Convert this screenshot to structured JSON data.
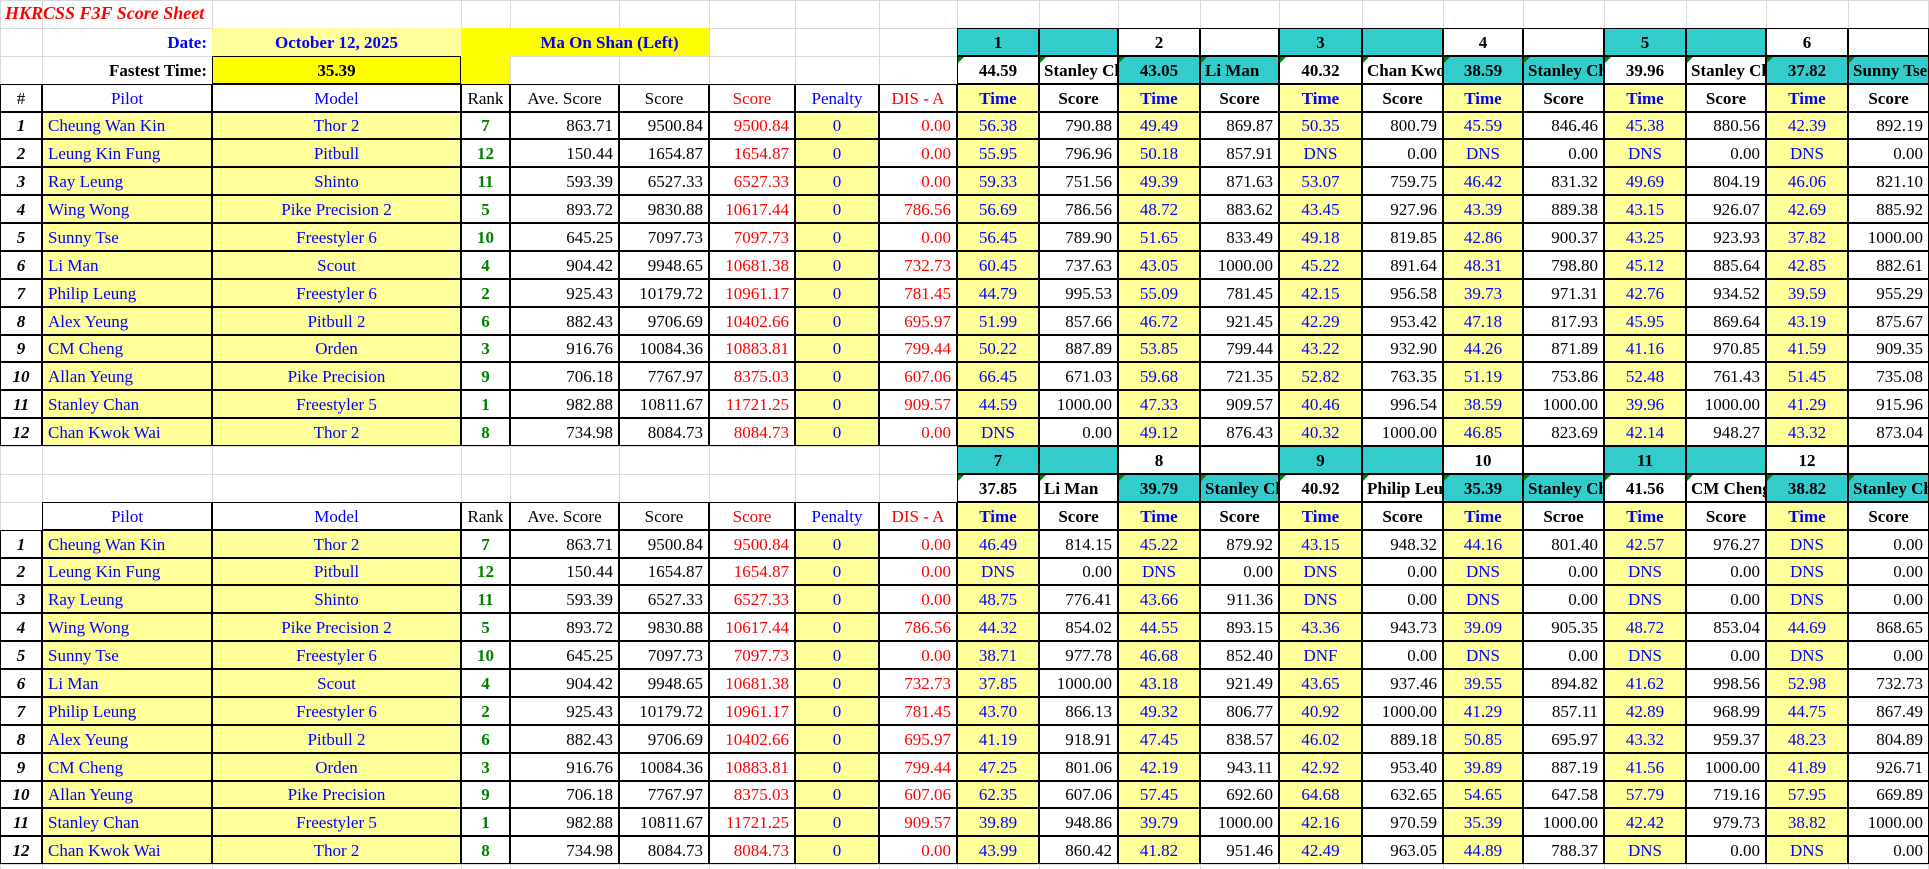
{
  "sheet_title": "HKRCSS F3F Score Sheet",
  "header": {
    "date_label": "Date:",
    "date_value": "October 12, 2025",
    "fastest_label": "Fastest Time:",
    "fastest_value": "35.39",
    "location": "Ma On Shan (Left)"
  },
  "columns": {
    "index": "#",
    "pilot": "Pilot",
    "model": "Model",
    "rank": "Rank",
    "ave": "Ave. Score",
    "score": "Score",
    "score_red": "Score",
    "penalty": "Penalty",
    "dis": "DIS - A",
    "time": "Time",
    "round_score": "Score",
    "round_score_alt": "Scroe"
  },
  "pilots": [
    {
      "no": "1",
      "pilot": "Cheung Wan Kin",
      "model": "Thor 2",
      "rank": "7",
      "ave": "863.71",
      "score": "9500.84",
      "total": "9500.84",
      "penalty": "0",
      "dis": "0.00"
    },
    {
      "no": "2",
      "pilot": "Leung Kin Fung",
      "model": "Pitbull",
      "rank": "12",
      "ave": "150.44",
      "score": "1654.87",
      "total": "1654.87",
      "penalty": "0",
      "dis": "0.00"
    },
    {
      "no": "3",
      "pilot": "Ray Leung",
      "model": "Shinto",
      "rank": "11",
      "ave": "593.39",
      "score": "6527.33",
      "total": "6527.33",
      "penalty": "0",
      "dis": "0.00"
    },
    {
      "no": "4",
      "pilot": "Wing Wong",
      "model": "Pike Precision 2",
      "rank": "5",
      "ave": "893.72",
      "score": "9830.88",
      "total": "10617.44",
      "penalty": "0",
      "dis": "786.56"
    },
    {
      "no": "5",
      "pilot": "Sunny Tse",
      "model": "Freestyler 6",
      "rank": "10",
      "ave": "645.25",
      "score": "7097.73",
      "total": "7097.73",
      "penalty": "0",
      "dis": "0.00"
    },
    {
      "no": "6",
      "pilot": "Li Man",
      "model": "Scout",
      "rank": "4",
      "ave": "904.42",
      "score": "9948.65",
      "total": "10681.38",
      "penalty": "0",
      "dis": "732.73"
    },
    {
      "no": "7",
      "pilot": "Philip Leung",
      "model": "Freestyler 6",
      "rank": "2",
      "ave": "925.43",
      "score": "10179.72",
      "total": "10961.17",
      "penalty": "0",
      "dis": "781.45"
    },
    {
      "no": "8",
      "pilot": "Alex Yeung",
      "model": "Pitbull 2",
      "rank": "6",
      "ave": "882.43",
      "score": "9706.69",
      "total": "10402.66",
      "penalty": "0",
      "dis": "695.97"
    },
    {
      "no": "9",
      "pilot": "CM Cheng",
      "model": "Orden",
      "rank": "3",
      "ave": "916.76",
      "score": "10084.36",
      "total": "10883.81",
      "penalty": "0",
      "dis": "799.44"
    },
    {
      "no": "10",
      "pilot": "Allan Yeung",
      "model": "Pike Precision",
      "rank": "9",
      "ave": "706.18",
      "score": "7767.97",
      "total": "8375.03",
      "penalty": "0",
      "dis": "607.06"
    },
    {
      "no": "11",
      "pilot": "Stanley Chan",
      "model": "Freestyler 5",
      "rank": "1",
      "ave": "982.88",
      "score": "10811.67",
      "total": "11721.25",
      "penalty": "0",
      "dis": "909.57"
    },
    {
      "no": "12",
      "pilot": "Chan Kwok Wai",
      "model": "Thor 2",
      "rank": "8",
      "ave": "734.98",
      "score": "8084.73",
      "total": "8084.73",
      "penalty": "0",
      "dis": "0.00"
    }
  ],
  "rounds_top": [
    {
      "round": "1",
      "best_time": "44.59",
      "best_pilot": "Stanley Chan",
      "entries": [
        [
          "56.38",
          "790.88"
        ],
        [
          "55.95",
          "796.96"
        ],
        [
          "59.33",
          "751.56"
        ],
        [
          "56.69",
          "786.56"
        ],
        [
          "56.45",
          "789.90"
        ],
        [
          "60.45",
          "737.63"
        ],
        [
          "44.79",
          "995.53"
        ],
        [
          "51.99",
          "857.66"
        ],
        [
          "50.22",
          "887.89"
        ],
        [
          "66.45",
          "671.03"
        ],
        [
          "44.59",
          "1000.00"
        ],
        [
          "DNS",
          "0.00"
        ]
      ]
    },
    {
      "round": "2",
      "best_time": "43.05",
      "best_pilot": "Li Man",
      "entries": [
        [
          "49.49",
          "869.87"
        ],
        [
          "50.18",
          "857.91"
        ],
        [
          "49.39",
          "871.63"
        ],
        [
          "48.72",
          "883.62"
        ],
        [
          "51.65",
          "833.49"
        ],
        [
          "43.05",
          "1000.00"
        ],
        [
          "55.09",
          "781.45"
        ],
        [
          "46.72",
          "921.45"
        ],
        [
          "53.85",
          "799.44"
        ],
        [
          "59.68",
          "721.35"
        ],
        [
          "47.33",
          "909.57"
        ],
        [
          "49.12",
          "876.43"
        ]
      ]
    },
    {
      "round": "3",
      "best_time": "40.32",
      "best_pilot": "Chan Kwok Wai",
      "entries": [
        [
          "50.35",
          "800.79"
        ],
        [
          "DNS",
          "0.00"
        ],
        [
          "53.07",
          "759.75"
        ],
        [
          "43.45",
          "927.96"
        ],
        [
          "49.18",
          "819.85"
        ],
        [
          "45.22",
          "891.64"
        ],
        [
          "42.15",
          "956.58"
        ],
        [
          "42.29",
          "953.42"
        ],
        [
          "43.22",
          "932.90"
        ],
        [
          "52.82",
          "763.35"
        ],
        [
          "40.46",
          "996.54"
        ],
        [
          "40.32",
          "1000.00"
        ]
      ]
    },
    {
      "round": "4",
      "best_time": "38.59",
      "best_pilot": "Stanley Chan",
      "entries": [
        [
          "45.59",
          "846.46"
        ],
        [
          "DNS",
          "0.00"
        ],
        [
          "46.42",
          "831.32"
        ],
        [
          "43.39",
          "889.38"
        ],
        [
          "42.86",
          "900.37"
        ],
        [
          "48.31",
          "798.80"
        ],
        [
          "39.73",
          "971.31"
        ],
        [
          "47.18",
          "817.93"
        ],
        [
          "44.26",
          "871.89"
        ],
        [
          "51.19",
          "753.86"
        ],
        [
          "38.59",
          "1000.00"
        ],
        [
          "46.85",
          "823.69"
        ]
      ]
    },
    {
      "round": "5",
      "best_time": "39.96",
      "best_pilot": "Stanley Chan",
      "entries": [
        [
          "45.38",
          "880.56"
        ],
        [
          "DNS",
          "0.00"
        ],
        [
          "49.69",
          "804.19"
        ],
        [
          "43.15",
          "926.07"
        ],
        [
          "43.25",
          "923.93"
        ],
        [
          "45.12",
          "885.64"
        ],
        [
          "42.76",
          "934.52"
        ],
        [
          "45.95",
          "869.64"
        ],
        [
          "41.16",
          "970.85"
        ],
        [
          "52.48",
          "761.43"
        ],
        [
          "39.96",
          "1000.00"
        ],
        [
          "42.14",
          "948.27"
        ]
      ]
    },
    {
      "round": "6",
      "best_time": "37.82",
      "best_pilot": "Sunny Tse",
      "entries": [
        [
          "42.39",
          "892.19"
        ],
        [
          "DNS",
          "0.00"
        ],
        [
          "46.06",
          "821.10"
        ],
        [
          "42.69",
          "885.92"
        ],
        [
          "37.82",
          "1000.00"
        ],
        [
          "42.85",
          "882.61"
        ],
        [
          "39.59",
          "955.29"
        ],
        [
          "43.19",
          "875.67"
        ],
        [
          "41.59",
          "909.35"
        ],
        [
          "51.45",
          "735.08"
        ],
        [
          "41.29",
          "915.96"
        ],
        [
          "43.32",
          "873.04"
        ]
      ]
    }
  ],
  "rounds_bottom": [
    {
      "round": "7",
      "best_time": "37.85",
      "best_pilot": "Li Man",
      "entries": [
        [
          "46.49",
          "814.15"
        ],
        [
          "DNS",
          "0.00"
        ],
        [
          "48.75",
          "776.41"
        ],
        [
          "44.32",
          "854.02"
        ],
        [
          "38.71",
          "977.78"
        ],
        [
          "37.85",
          "1000.00"
        ],
        [
          "43.70",
          "866.13"
        ],
        [
          "41.19",
          "918.91"
        ],
        [
          "47.25",
          "801.06"
        ],
        [
          "62.35",
          "607.06"
        ],
        [
          "39.89",
          "948.86"
        ],
        [
          "43.99",
          "860.42"
        ]
      ]
    },
    {
      "round": "8",
      "best_time": "39.79",
      "best_pilot": "Stanley Chan",
      "entries": [
        [
          "45.22",
          "879.92"
        ],
        [
          "DNS",
          "0.00"
        ],
        [
          "43.66",
          "911.36"
        ],
        [
          "44.55",
          "893.15"
        ],
        [
          "46.68",
          "852.40"
        ],
        [
          "43.18",
          "921.49"
        ],
        [
          "49.32",
          "806.77"
        ],
        [
          "47.45",
          "838.57"
        ],
        [
          "42.19",
          "943.11"
        ],
        [
          "57.45",
          "692.60"
        ],
        [
          "39.79",
          "1000.00"
        ],
        [
          "41.82",
          "951.46"
        ]
      ]
    },
    {
      "round": "9",
      "best_time": "40.92",
      "best_pilot": "Philip Leung",
      "entries": [
        [
          "43.15",
          "948.32"
        ],
        [
          "DNS",
          "0.00"
        ],
        [
          "DNS",
          "0.00"
        ],
        [
          "43.36",
          "943.73"
        ],
        [
          "DNF",
          "0.00"
        ],
        [
          "43.65",
          "937.46"
        ],
        [
          "40.92",
          "1000.00"
        ],
        [
          "46.02",
          "889.18"
        ],
        [
          "42.92",
          "953.40"
        ],
        [
          "64.68",
          "632.65"
        ],
        [
          "42.16",
          "970.59"
        ],
        [
          "42.49",
          "963.05"
        ]
      ]
    },
    {
      "round": "10",
      "best_time": "35.39",
      "best_pilot": "Stanley Chan",
      "entries": [
        [
          "44.16",
          "801.40"
        ],
        [
          "DNS",
          "0.00"
        ],
        [
          "DNS",
          "0.00"
        ],
        [
          "39.09",
          "905.35"
        ],
        [
          "DNS",
          "0.00"
        ],
        [
          "39.55",
          "894.82"
        ],
        [
          "41.29",
          "857.11"
        ],
        [
          "50.85",
          "695.97"
        ],
        [
          "39.89",
          "887.19"
        ],
        [
          "54.65",
          "647.58"
        ],
        [
          "35.39",
          "1000.00"
        ],
        [
          "44.89",
          "788.37"
        ]
      ]
    },
    {
      "round": "11",
      "best_time": "41.56",
      "best_pilot": "CM Cheng",
      "entries": [
        [
          "42.57",
          "976.27"
        ],
        [
          "DNS",
          "0.00"
        ],
        [
          "DNS",
          "0.00"
        ],
        [
          "48.72",
          "853.04"
        ],
        [
          "DNS",
          "0.00"
        ],
        [
          "41.62",
          "998.56"
        ],
        [
          "42.89",
          "968.99"
        ],
        [
          "43.32",
          "959.37"
        ],
        [
          "41.56",
          "1000.00"
        ],
        [
          "57.79",
          "719.16"
        ],
        [
          "42.42",
          "979.73"
        ],
        [
          "DNS",
          "0.00"
        ]
      ]
    },
    {
      "round": "12",
      "best_time": "38.82",
      "best_pilot": "Stanley Chan",
      "entries": [
        [
          "DNS",
          "0.00"
        ],
        [
          "DNS",
          "0.00"
        ],
        [
          "DNS",
          "0.00"
        ],
        [
          "44.69",
          "868.65"
        ],
        [
          "DNS",
          "0.00"
        ],
        [
          "52.98",
          "732.73"
        ],
        [
          "44.75",
          "867.49"
        ],
        [
          "48.23",
          "804.89"
        ],
        [
          "41.89",
          "926.71"
        ],
        [
          "57.95",
          "669.89"
        ],
        [
          "38.82",
          "1000.00"
        ],
        [
          "DNS",
          "0.00"
        ]
      ]
    }
  ],
  "colors": {
    "yellow_fill": "#ffff99",
    "bright_yellow": "#ffff00",
    "teal": "#33cccc",
    "blue_text": "#0000ff",
    "red_text": "#ff0000",
    "green_text": "#008000"
  }
}
